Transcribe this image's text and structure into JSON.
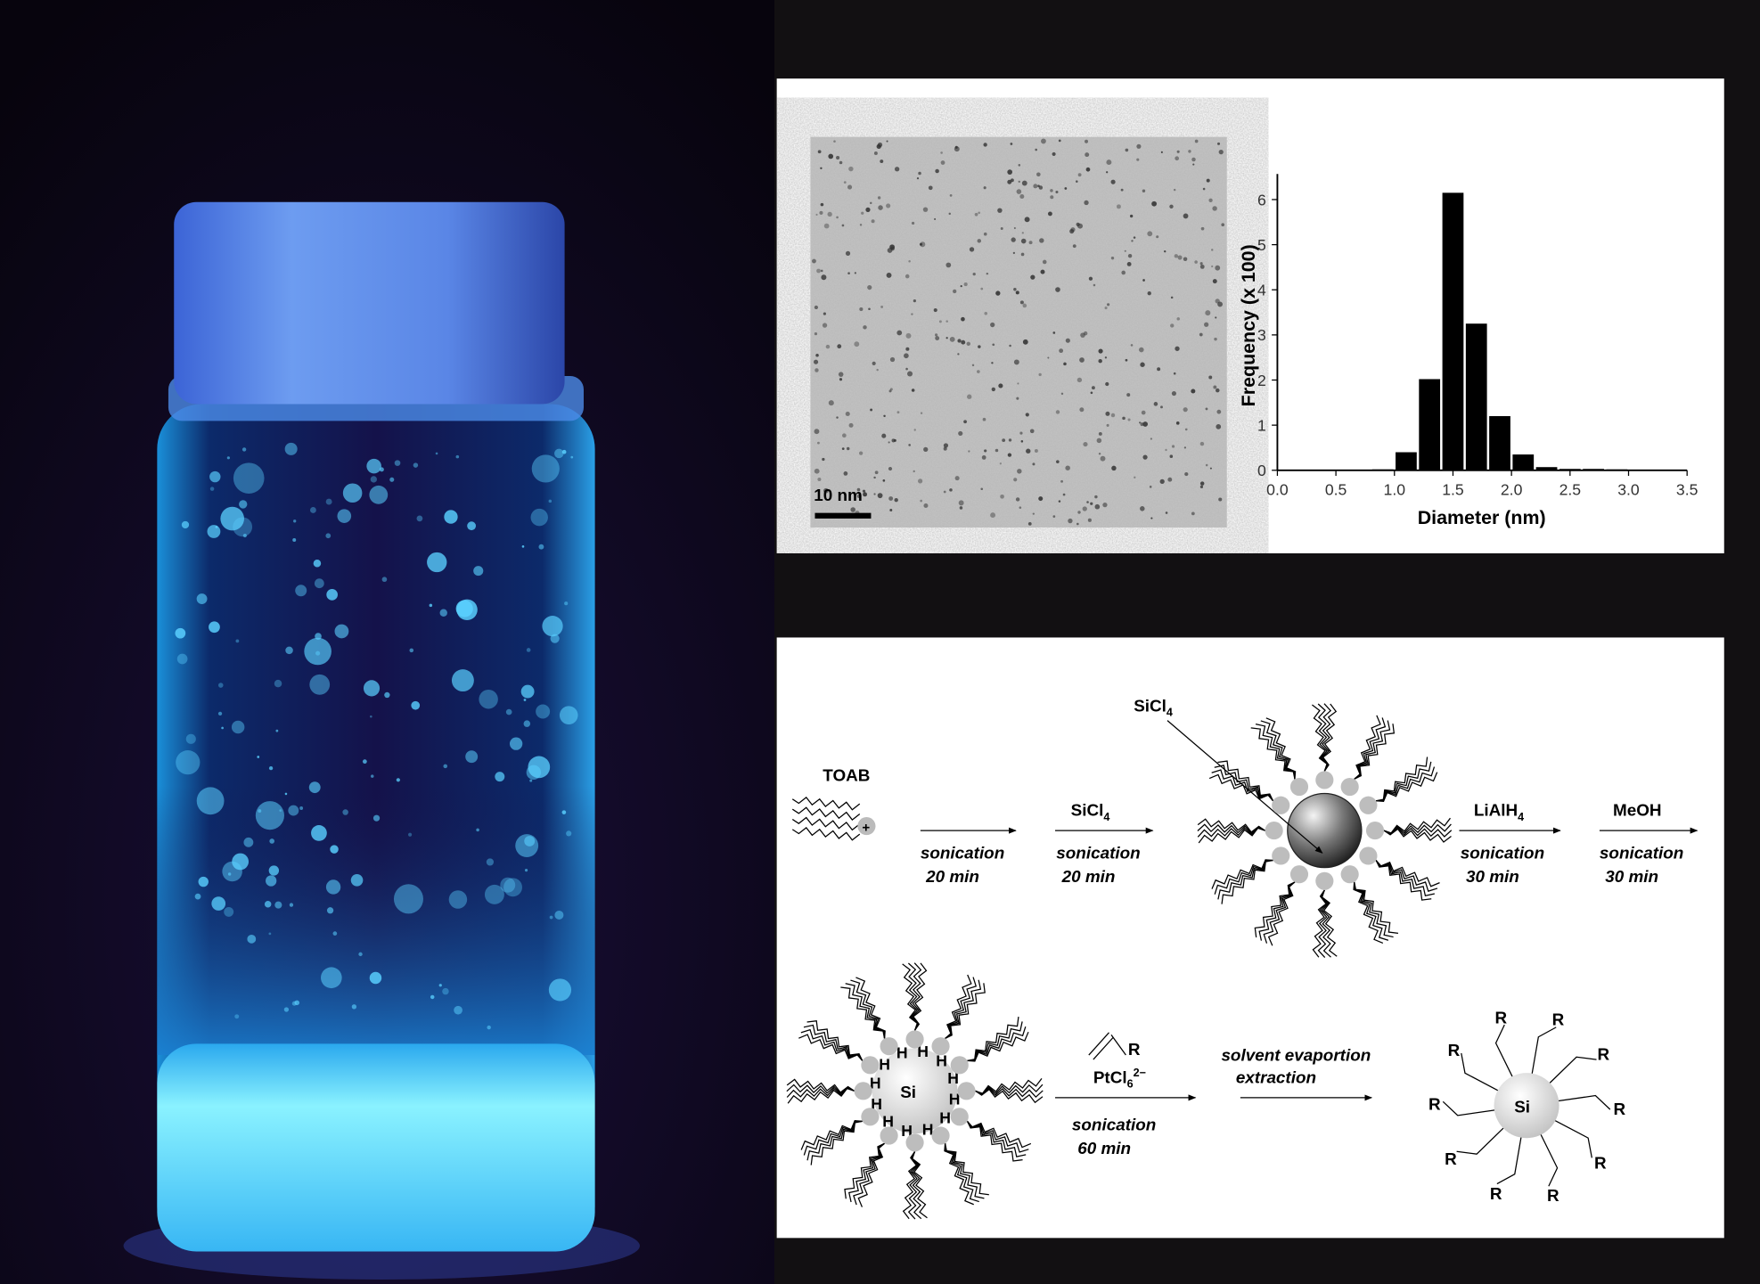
{
  "tem": {
    "scale_bar_label": "10 nm"
  },
  "chart_data": {
    "type": "bar",
    "xlabel": "Diameter (nm)",
    "ylabel": "Frequency (x 100)",
    "xlim": [
      0,
      3.5
    ],
    "ylim": [
      0,
      6.5
    ],
    "x_ticks": [
      "0.0",
      "0.5",
      "1.0",
      "1.5",
      "2.0",
      "2.5",
      "3.0",
      "3.5"
    ],
    "y_ticks": [
      "0",
      "1",
      "2",
      "3",
      "4",
      "5",
      "6"
    ],
    "bin_width": 0.2,
    "bin_centers": [
      0.9,
      1.1,
      1.3,
      1.5,
      1.7,
      1.9,
      2.1,
      2.3,
      2.5,
      2.7,
      2.9
    ],
    "values": [
      0.02,
      0.4,
      2.02,
      6.15,
      3.25,
      1.2,
      0.35,
      0.07,
      0.03,
      0.03,
      0.02
    ],
    "bar_color": "#000000",
    "grid": false
  },
  "scheme": {
    "toab": "TOAB",
    "plus": "+",
    "step1": {
      "above": "",
      "below1": "sonication",
      "below2": "20 min"
    },
    "step2": {
      "above": "SiCl4",
      "below1": "sonication",
      "below2": "20 min"
    },
    "micelle_label": "SiCl4",
    "step3": {
      "above": "LiAlH4",
      "below1": "sonication",
      "below2": "30 min"
    },
    "step4": {
      "above": "MeOH",
      "below1": "sonication",
      "below2": "30 min"
    },
    "core_label": "Si",
    "hydride": "H",
    "step5": {
      "alkene_r": "R",
      "above": "PtCl6",
      "charge": "2−",
      "below1": "sonication",
      "below2": "60 min"
    },
    "step6": {
      "above1": "solvent evaportion",
      "above2": "extraction"
    },
    "product_core": "Si",
    "r_group": "R"
  },
  "photo": {
    "glow_color": "#4fd8ff",
    "background": "#0a0614"
  }
}
